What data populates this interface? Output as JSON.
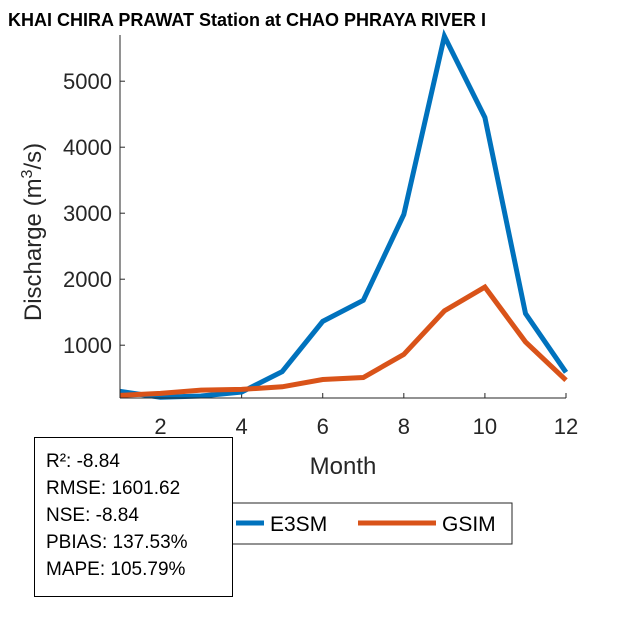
{
  "chart_data": {
    "type": "line",
    "title": "KHAI CHIRA PRAWAT  Station at  CHAO PHRAYA RIVER  I",
    "xlabel": "Month",
    "ylabel_main": "Discharge (m",
    "ylabel_sup": "3",
    "ylabel_end": "/s)",
    "xlim": [
      1,
      12
    ],
    "ylim": [
      200,
      5700
    ],
    "xticks": [
      2,
      4,
      6,
      8,
      10,
      12
    ],
    "yticks": [
      1000,
      2000,
      3000,
      4000,
      5000
    ],
    "x": [
      1,
      2,
      3,
      4,
      5,
      6,
      7,
      8,
      9,
      10,
      11,
      12
    ],
    "series": [
      {
        "name": "E3SM",
        "color": "#0072BD",
        "values": [
          300,
          210,
          230,
          290,
          600,
          1360,
          1680,
          2980,
          5680,
          4450,
          1480,
          590
        ]
      },
      {
        "name": "GSIM",
        "color": "#D95319",
        "values": [
          240,
          270,
          320,
          330,
          370,
          480,
          510,
          860,
          1520,
          1880,
          1050,
          470
        ]
      }
    ],
    "legend_position": "below"
  },
  "stats": {
    "r2": "R²: -8.84",
    "rmse": "RMSE: 1601.62",
    "nse": "NSE: -8.84",
    "pbias": "PBIAS: 137.53%",
    "mape": "MAPE: 105.79%"
  }
}
